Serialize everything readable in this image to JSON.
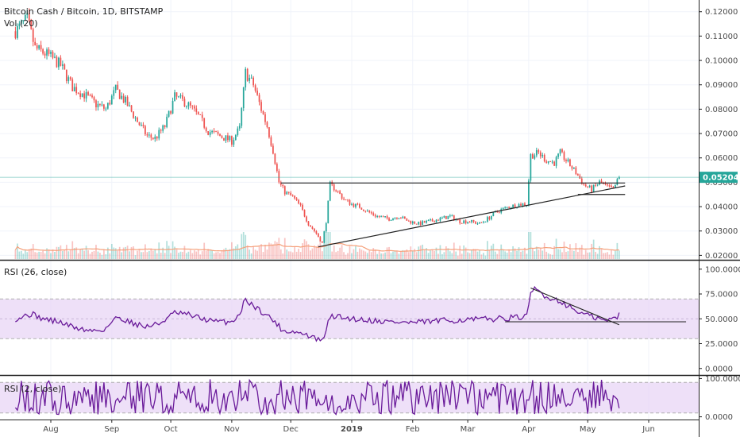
{
  "header": {
    "symbol_line": "Bitcoin Cash / Bitcoin, 1D, BITSTAMP",
    "volume_line": "Vol (20)"
  },
  "colors": {
    "up": "#26a69a",
    "down": "#ef5350",
    "rsi_line": "#6a1b9a",
    "rsi_band": "#e8d5f5",
    "volume_ma": "#f5a07a",
    "price_line": "#26a69a"
  },
  "chart_data": [
    {
      "type": "candlestick",
      "title": "Bitcoin Cash / Bitcoin, 1D, BITSTAMP",
      "current_price": "0.05204",
      "y_ticks": [
        "0.12000",
        "0.11000",
        "0.10000",
        "0.09000",
        "0.08000",
        "0.07000",
        "0.06000",
        "0.05000",
        "0.04000",
        "0.03000",
        "0.02000"
      ],
      "ylim": [
        0.0185,
        0.1235
      ],
      "x_ticks": [
        "Aug",
        "Sep",
        "Oct",
        "Nov",
        "Dec",
        "2019",
        "Feb",
        "Mar",
        "Apr",
        "May",
        "Jun"
      ],
      "close_path": [
        [
          "2018-07-14",
          0.112
        ],
        [
          "2018-07-20",
          0.117
        ],
        [
          "2018-07-24",
          0.105
        ],
        [
          "2018-07-31",
          0.102
        ],
        [
          "2018-08-06",
          0.098
        ],
        [
          "2018-08-12",
          0.089
        ],
        [
          "2018-08-18",
          0.086
        ],
        [
          "2018-08-24",
          0.082
        ],
        [
          "2018-08-29",
          0.08
        ],
        [
          "2018-09-03",
          0.088
        ],
        [
          "2018-09-08",
          0.083
        ],
        [
          "2018-09-14",
          0.075
        ],
        [
          "2018-09-19",
          0.069
        ],
        [
          "2018-09-23",
          0.068
        ],
        [
          "2018-09-28",
          0.073
        ],
        [
          "2018-10-03",
          0.085
        ],
        [
          "2018-10-08",
          0.083
        ],
        [
          "2018-10-12",
          0.08
        ],
        [
          "2018-10-16",
          0.076
        ],
        [
          "2018-10-20",
          0.071
        ],
        [
          "2018-10-26",
          0.069
        ],
        [
          "2018-11-01",
          0.067
        ],
        [
          "2018-11-05",
          0.072
        ],
        [
          "2018-11-08",
          0.095
        ],
        [
          "2018-11-12",
          0.09
        ],
        [
          "2018-11-16",
          0.08
        ],
        [
          "2018-11-19",
          0.073
        ],
        [
          "2018-11-22",
          0.063
        ],
        [
          "2018-11-25",
          0.05
        ],
        [
          "2018-11-28",
          0.046
        ],
        [
          "2018-12-02",
          0.044
        ],
        [
          "2018-12-06",
          0.04
        ],
        [
          "2018-12-10",
          0.033
        ],
        [
          "2018-12-14",
          0.029
        ],
        [
          "2018-12-17",
          0.025
        ],
        [
          "2018-12-19",
          0.034
        ],
        [
          "2018-12-21",
          0.049
        ],
        [
          "2018-12-24",
          0.047
        ],
        [
          "2018-12-28",
          0.043
        ],
        [
          "2019-01-01",
          0.041
        ],
        [
          "2019-01-05",
          0.04
        ],
        [
          "2019-01-09",
          0.038
        ],
        [
          "2019-01-14",
          0.036
        ],
        [
          "2019-01-20",
          0.035
        ],
        [
          "2019-01-25",
          0.036
        ],
        [
          "2019-01-30",
          0.034
        ],
        [
          "2019-02-04",
          0.033
        ],
        [
          "2019-02-10",
          0.034
        ],
        [
          "2019-02-15",
          0.035
        ],
        [
          "2019-02-20",
          0.036
        ],
        [
          "2019-02-25",
          0.034
        ],
        [
          "2019-03-02",
          0.034
        ],
        [
          "2019-03-07",
          0.033
        ],
        [
          "2019-03-11",
          0.035
        ],
        [
          "2019-03-16",
          0.038
        ],
        [
          "2019-03-22",
          0.04
        ],
        [
          "2019-03-28",
          0.041
        ],
        [
          "2019-03-31",
          0.041
        ],
        [
          "2019-04-02",
          0.061
        ],
        [
          "2019-04-06",
          0.062
        ],
        [
          "2019-04-10",
          0.059
        ],
        [
          "2019-04-14",
          0.058
        ],
        [
          "2019-04-17",
          0.062
        ],
        [
          "2019-04-21",
          0.058
        ],
        [
          "2019-04-25",
          0.054
        ],
        [
          "2019-04-29",
          0.049
        ],
        [
          "2019-05-03",
          0.047
        ],
        [
          "2019-05-07",
          0.05
        ],
        [
          "2019-05-11",
          0.048
        ],
        [
          "2019-05-14",
          0.047
        ],
        [
          "2019-05-17",
          0.05204
        ]
      ],
      "annotations": {
        "horizontal_resistance": {
          "from": "2018-11-26",
          "to": "2019-05-20",
          "value": 0.0497
        },
        "rising_trendline": {
          "from": [
            "2018-12-15",
            0.0235
          ],
          "to": [
            "2019-05-20",
            0.0485
          ]
        },
        "horizontal_support": {
          "from": "2019-04-26",
          "to": "2019-05-20",
          "value": 0.045
        }
      }
    },
    {
      "type": "line",
      "title": "RSI (26, close)",
      "y_ticks": [
        "100.0000",
        "75.0000",
        "50.0000",
        "25.0000",
        "0.0000"
      ],
      "ylim": [
        -5,
        107
      ],
      "band": [
        30,
        70
      ],
      "series": [
        {
          "name": "RSI (26, close)",
          "values_path": [
            [
              "2018-07-14",
              50
            ],
            [
              "2018-07-22",
              55
            ],
            [
              "2018-07-28",
              50
            ],
            [
              "2018-08-05",
              47
            ],
            [
              "2018-08-12",
              42
            ],
            [
              "2018-08-20",
              38
            ],
            [
              "2018-08-28",
              39
            ],
            [
              "2018-09-04",
              52
            ],
            [
              "2018-09-10",
              47
            ],
            [
              "2018-09-18",
              42
            ],
            [
              "2018-09-25",
              45
            ],
            [
              "2018-10-03",
              56
            ],
            [
              "2018-10-10",
              54
            ],
            [
              "2018-10-17",
              50
            ],
            [
              "2018-10-24",
              47
            ],
            [
              "2018-11-01",
              47
            ],
            [
              "2018-11-05",
              55
            ],
            [
              "2018-11-08",
              70
            ],
            [
              "2018-11-12",
              63
            ],
            [
              "2018-11-18",
              55
            ],
            [
              "2018-11-23",
              47
            ],
            [
              "2018-11-27",
              38
            ],
            [
              "2018-12-03",
              37
            ],
            [
              "2018-12-10",
              33
            ],
            [
              "2018-12-17",
              27
            ],
            [
              "2018-12-20",
              46
            ],
            [
              "2018-12-22",
              53
            ],
            [
              "2018-12-28",
              51
            ],
            [
              "2019-01-08",
              49
            ],
            [
              "2019-01-20",
              47
            ],
            [
              "2019-02-01",
              46
            ],
            [
              "2019-02-15",
              48
            ],
            [
              "2019-03-01",
              49
            ],
            [
              "2019-03-15",
              50
            ],
            [
              "2019-03-31",
              52
            ],
            [
              "2019-04-02",
              74
            ],
            [
              "2019-04-04",
              81
            ],
            [
              "2019-04-10",
              72
            ],
            [
              "2019-04-17",
              68
            ],
            [
              "2019-04-25",
              58
            ],
            [
              "2019-05-03",
              52
            ],
            [
              "2019-05-10",
              48
            ],
            [
              "2019-05-14",
              50
            ],
            [
              "2019-05-17",
              54
            ]
          ]
        }
      ],
      "annotations": {
        "horizontal_line": {
          "from": "2019-03-20",
          "to": "2019-06-20",
          "value": 47
        },
        "falling_trendline": {
          "from": [
            "2019-04-02",
            81
          ],
          "to": [
            "2019-05-17",
            44
          ]
        }
      }
    },
    {
      "type": "line",
      "title": "RSI (2, close)",
      "y_ticks": [
        "100.0000",
        "0.0000"
      ],
      "ylim": [
        -5,
        105
      ],
      "band": [
        10,
        90
      ]
    }
  ]
}
